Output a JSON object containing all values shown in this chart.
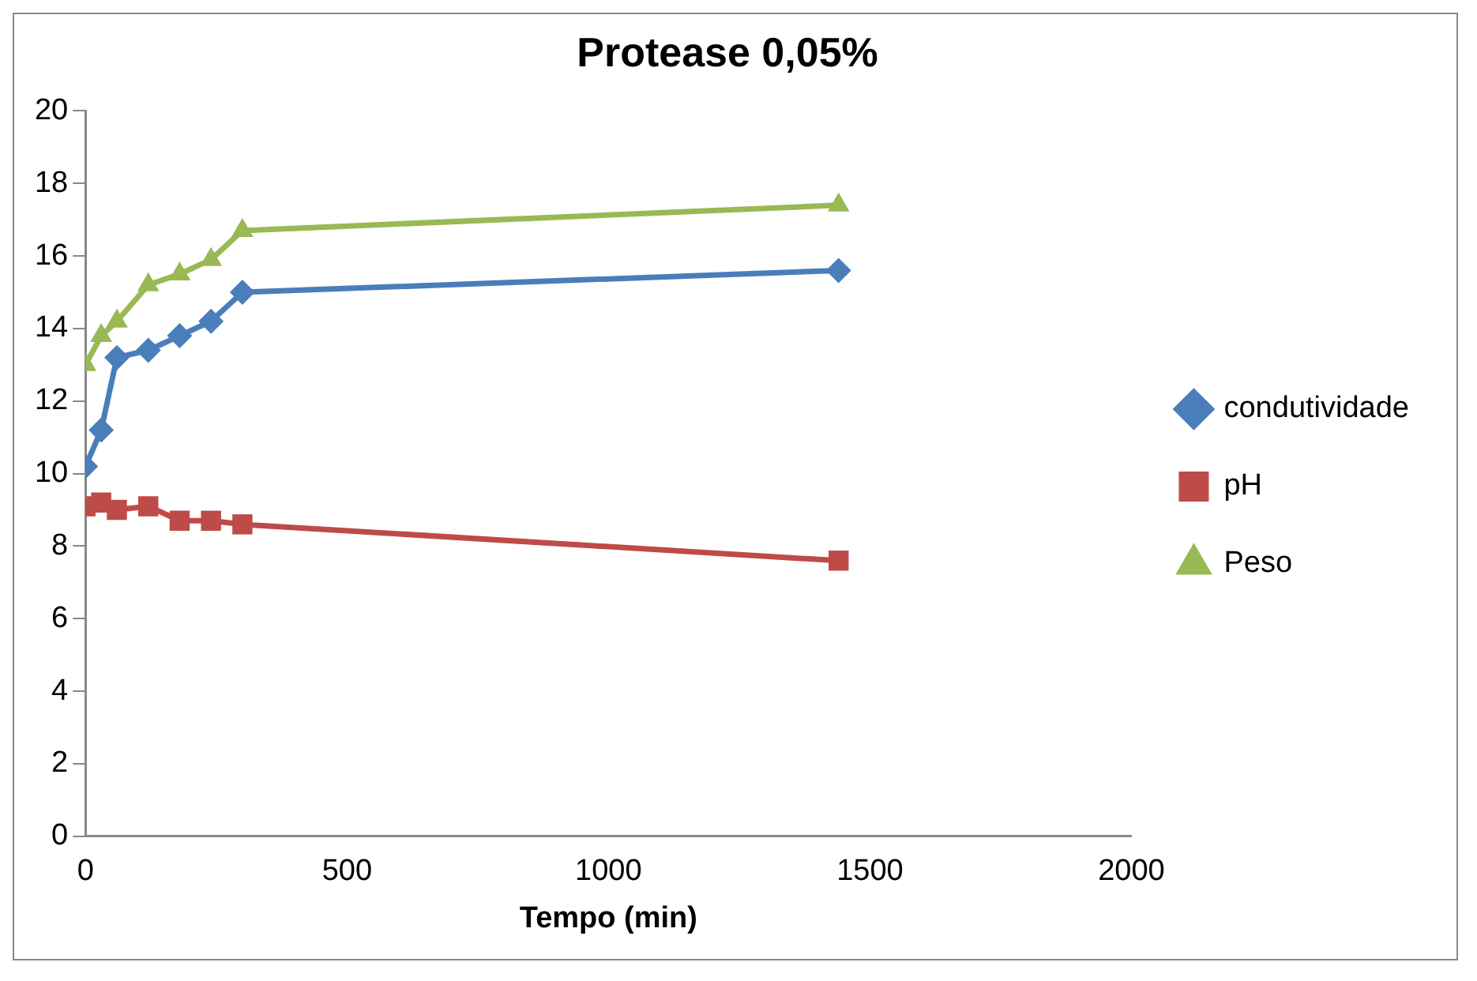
{
  "chart_data": {
    "type": "line",
    "title": "Protease 0,05%",
    "xlabel": "Tempo (min)",
    "xlim": [
      0,
      2000
    ],
    "xticks": [
      0,
      500,
      1000,
      1500,
      2000
    ],
    "ylim": [
      0,
      20
    ],
    "yticks": [
      0,
      2,
      4,
      6,
      8,
      10,
      12,
      14,
      16,
      18,
      20
    ],
    "grid": false,
    "legend": "right",
    "series": [
      {
        "name": "condutividade",
        "color": "#4a7ebb",
        "marker": "diamond",
        "x": [
          0,
          30,
          60,
          120,
          180,
          240,
          300,
          1440
        ],
        "values": [
          10.2,
          11.2,
          13.2,
          13.4,
          13.8,
          14.2,
          15.0,
          15.6
        ]
      },
      {
        "name": "pH",
        "color": "#be4b48",
        "marker": "square",
        "x": [
          0,
          30,
          60,
          120,
          180,
          240,
          300,
          1440
        ],
        "values": [
          9.1,
          9.2,
          9.0,
          9.1,
          8.7,
          8.7,
          8.6,
          7.6
        ]
      },
      {
        "name": "Peso",
        "color": "#98b954",
        "marker": "triangle",
        "x": [
          0,
          30,
          60,
          120,
          180,
          240,
          300,
          1440
        ],
        "values": [
          13.0,
          13.8,
          14.2,
          15.2,
          15.5,
          15.9,
          16.7,
          17.4
        ]
      }
    ]
  }
}
